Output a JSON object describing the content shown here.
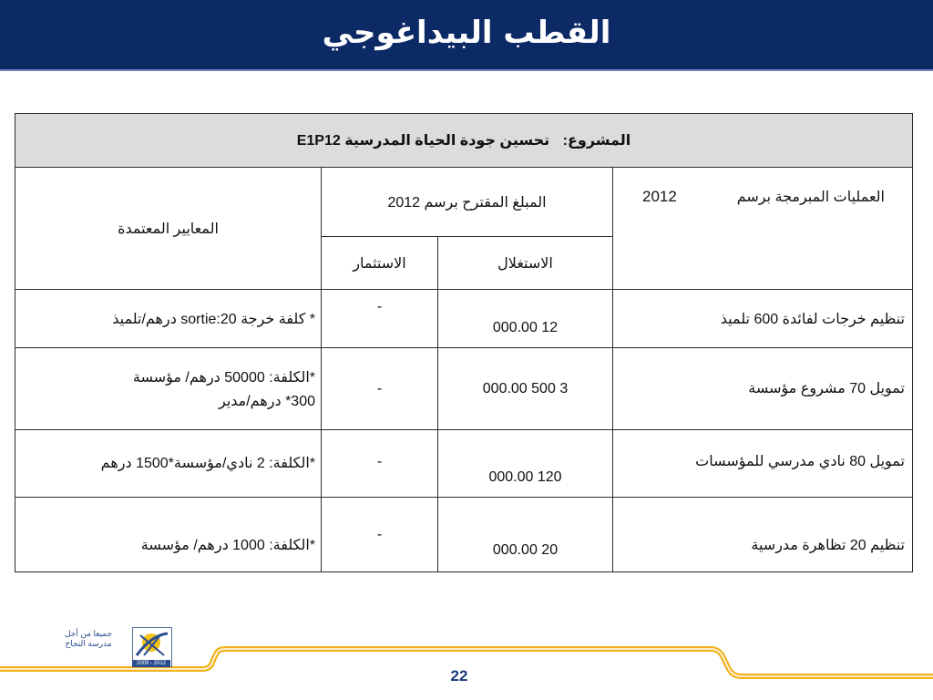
{
  "header": {
    "title": "القطب البيداغوجي"
  },
  "project": {
    "label": "المشروع:",
    "name": "تحسين جودة الحياة المدرسية",
    "code": "E1P12"
  },
  "table": {
    "col_ops": "العمليات المبرمجة برسم",
    "col_ops_year": "2012",
    "col_amount": "المبلغ المقترح برسم 2012",
    "col_operating": "الاستغلال",
    "col_investment": "الاستثمار",
    "col_criteria": "المعايير المعتمدة",
    "rows": [
      {
        "op": "تنظيم خرجات لفائدة 600 تلميذ",
        "operating": "12 000.00",
        "investment": "-",
        "criteria_1": "* كلفة خرجة 20:sortie درهم/تلميذ",
        "criteria_2": ""
      },
      {
        "op": "تمويل 70 مشروع مؤسسة",
        "operating": "3 500 000.00",
        "investment": "-",
        "criteria_1": "*الكلفة: 50000 درهم/ مؤسسة",
        "criteria_2": "300* درهم/مدير"
      },
      {
        "op": "تمويل 80 نادي مدرسي للمؤسسات",
        "operating": "120 000.00",
        "investment": "-",
        "criteria_1": "*الكلفة: 2 نادي/مؤسسة*1500 درهم",
        "criteria_2": ""
      },
      {
        "op": "تنظيم 20 تظاهرة مدرسية",
        "operating": "20 000.00",
        "investment": "-",
        "criteria_1": "*الكلفة: 1000 درهم/ مؤسسة",
        "criteria_2": ""
      }
    ]
  },
  "logo": {
    "line1": "جميعا من أجل",
    "line2": "مدرسة النجاح",
    "years": "2009 - 2012"
  },
  "footer": {
    "page": "22"
  },
  "colors": {
    "title_bg": "#0c2a66",
    "footer_line": "#f2b21c",
    "project_bg": "#dcdcdc"
  }
}
